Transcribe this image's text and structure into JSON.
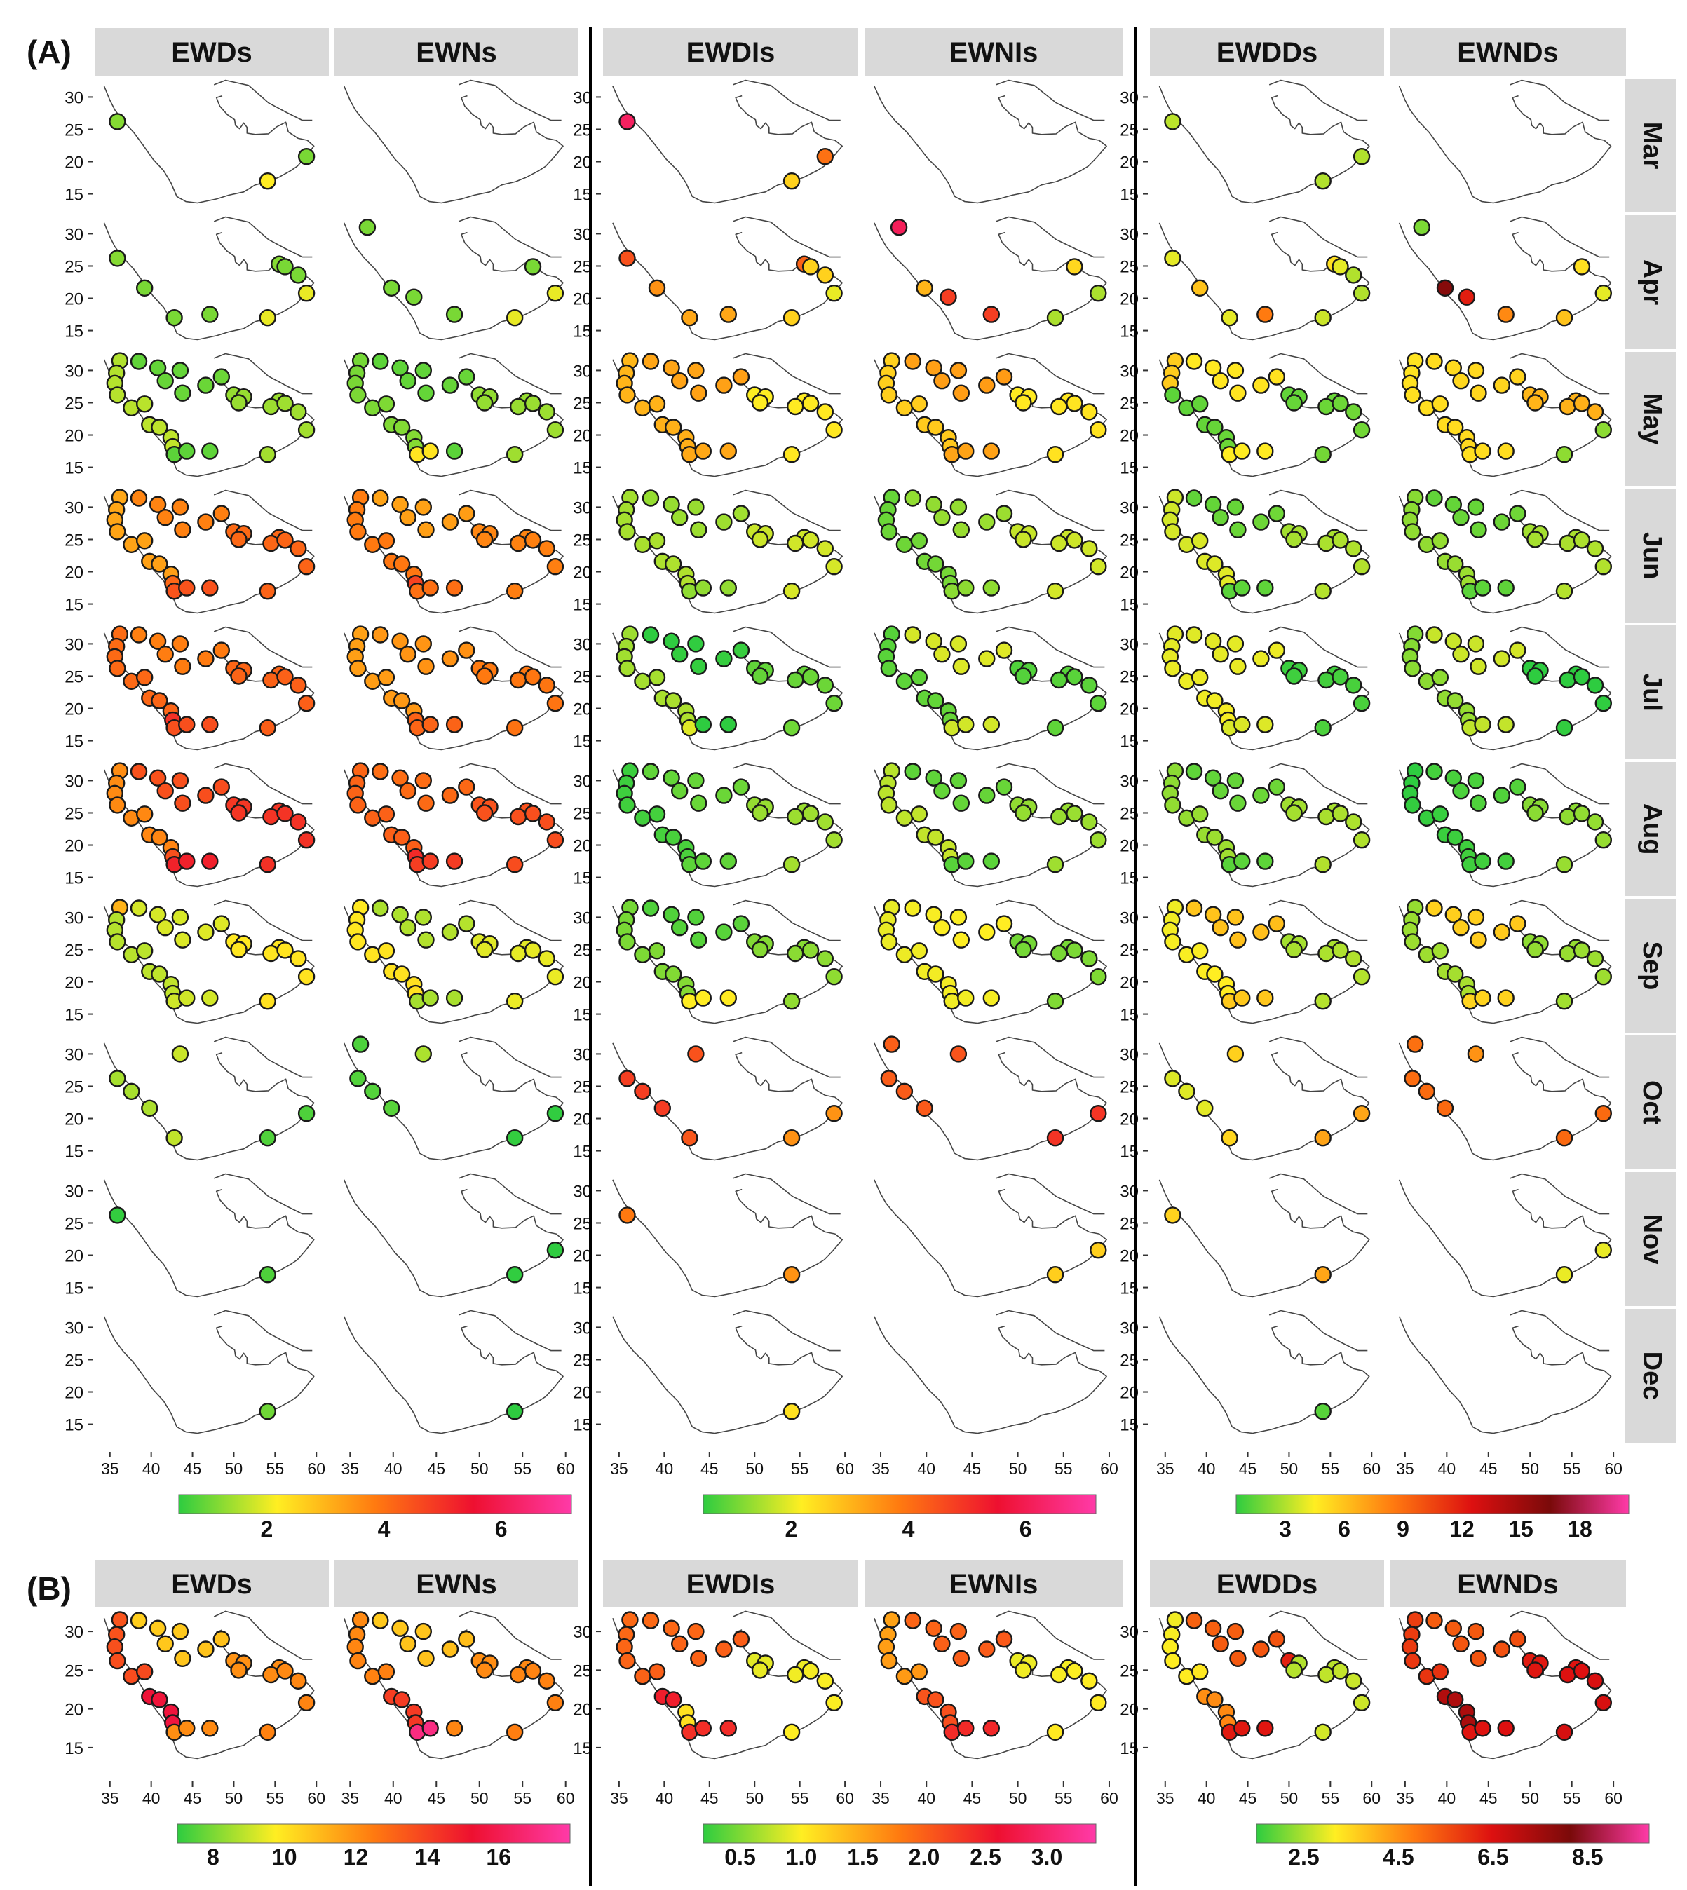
{
  "figure": {
    "panel_a_label": "(A)",
    "panel_b_label": "(B)"
  },
  "colors": {
    "strip_bg": "#d9d9d9",
    "divider": "#000000",
    "dot_stroke": "#1a1a1a"
  },
  "chart_data": [
    {
      "type": "scatter",
      "panel": "(A)",
      "facet_columns": [
        "EWDs",
        "EWNs",
        "EWDIs",
        "EWNIs",
        "EWDDs",
        "EWNDs"
      ],
      "facet_rows": [
        "Mar",
        "Apr",
        "May",
        "Jun",
        "Jul",
        "Aug",
        "Sep",
        "Oct",
        "Nov",
        "Dec"
      ],
      "xlim": [
        34,
        61
      ],
      "ylim": [
        13,
        32
      ],
      "x_ticks": [
        "35",
        "40",
        "45",
        "50",
        "55",
        "60"
      ],
      "y_ticks": [
        "30",
        "25",
        "20",
        "15"
      ],
      "xlabel": "",
      "ylabel": "",
      "grid": false,
      "colorbars": [
        {
          "columns": [
            "EWDs",
            "EWNs"
          ],
          "range": [
            0.5,
            7.2
          ],
          "ticks": [
            "2",
            "4",
            "6"
          ],
          "colors": [
            "#2ecc40",
            "#ffee22",
            "#ff7a10",
            "#ee1030",
            "#ff3aa8"
          ]
        },
        {
          "columns": [
            "EWDIs",
            "EWNIs"
          ],
          "range": [
            0.5,
            7.2
          ],
          "ticks": [
            "2",
            "4",
            "6"
          ],
          "colors": [
            "#2ecc40",
            "#ffee22",
            "#ff7a10",
            "#ee1030",
            "#ff3aa8"
          ]
        },
        {
          "columns": [
            "EWDDs",
            "EWNDs"
          ],
          "range": [
            0.5,
            20.5
          ],
          "ticks": [
            "3",
            "6",
            "9",
            "12",
            "15",
            "18"
          ],
          "colors": [
            "#2ecc40",
            "#ffee22",
            "#ff7a10",
            "#dd1010",
            "#7a0a0a",
            "#ff3aa8"
          ]
        }
      ],
      "station_coordinates": [
        {
          "id": "s0",
          "lon": 36.2,
          "lat": 31.5
        },
        {
          "id": "s1",
          "lon": 35.8,
          "lat": 29.6
        },
        {
          "id": "s2",
          "lon": 35.6,
          "lat": 28.0
        },
        {
          "id": "s3",
          "lon": 35.9,
          "lat": 26.2
        },
        {
          "id": "s4",
          "lon": 37.6,
          "lat": 24.2
        },
        {
          "id": "s5",
          "lon": 39.2,
          "lat": 24.8
        },
        {
          "id": "s6",
          "lon": 39.8,
          "lat": 21.6
        },
        {
          "id": "s7",
          "lon": 41.0,
          "lat": 21.2
        },
        {
          "id": "s8",
          "lon": 42.4,
          "lat": 19.6
        },
        {
          "id": "s9",
          "lon": 42.6,
          "lat": 18.2
        },
        {
          "id": "s10",
          "lon": 42.8,
          "lat": 17.0
        },
        {
          "id": "s11",
          "lon": 44.3,
          "lat": 17.5
        },
        {
          "id": "s12",
          "lon": 47.1,
          "lat": 17.5
        },
        {
          "id": "s13",
          "lon": 38.5,
          "lat": 31.4
        },
        {
          "id": "s14",
          "lon": 40.8,
          "lat": 30.4
        },
        {
          "id": "s15",
          "lon": 43.5,
          "lat": 30.0
        },
        {
          "id": "s16",
          "lon": 41.7,
          "lat": 28.4
        },
        {
          "id": "s17",
          "lon": 43.8,
          "lat": 26.5
        },
        {
          "id": "s18",
          "lon": 46.6,
          "lat": 27.7
        },
        {
          "id": "s19",
          "lon": 48.5,
          "lat": 29.0
        },
        {
          "id": "s20",
          "lon": 50.0,
          "lat": 26.2
        },
        {
          "id": "s21",
          "lon": 51.2,
          "lat": 25.9
        },
        {
          "id": "s22",
          "lon": 50.6,
          "lat": 25.0
        },
        {
          "id": "s23",
          "lon": 55.5,
          "lat": 25.3
        },
        {
          "id": "s24",
          "lon": 54.5,
          "lat": 24.4
        },
        {
          "id": "s25",
          "lon": 56.2,
          "lat": 24.9
        },
        {
          "id": "s26",
          "lon": 57.8,
          "lat": 23.6
        },
        {
          "id": "s27",
          "lon": 58.8,
          "lat": 20.8
        },
        {
          "id": "s28",
          "lon": 54.1,
          "lat": 17.0
        }
      ],
      "cells": {
        "Mar": {
          "EWDs": [
            {
              "lon": 35.9,
              "lat": 26.2,
              "value": 1.2
            },
            {
              "lon": 54.1,
              "lat": 17.0,
              "value": 2.2
            },
            {
              "lon": 58.8,
              "lat": 20.8,
              "value": 1.1
            }
          ],
          "EWDIs": [
            {
              "lon": 35.9,
              "lat": 26.2,
              "value": 6.2
            },
            {
              "lon": 54.1,
              "lat": 17.0,
              "value": 2.6
            },
            {
              "lon": 57.8,
              "lat": 20.8,
              "value": 4.0
            }
          ],
          "EWDDs": [
            {
              "lon": 35.9,
              "lat": 26.2,
              "value": 3.2
            },
            {
              "lon": 54.1,
              "lat": 17.0,
              "value": 3.0
            },
            {
              "lon": 58.8,
              "lat": 20.8,
              "value": 3.0
            }
          ]
        },
        "Apr": {
          "EWDs": [
            {
              "lon": 35.9,
              "lat": 26.2,
              "value": 1.2
            },
            {
              "lon": 39.2,
              "lat": 21.6,
              "value": 1.1
            },
            {
              "lon": 42.8,
              "lat": 17.0,
              "value": 1.1
            },
            {
              "lon": 47.1,
              "lat": 17.5,
              "value": 1.1
            },
            {
              "lon": 54.1,
              "lat": 17.0,
              "value": 2.0
            },
            {
              "lon": 55.5,
              "lat": 25.3,
              "value": 1.2
            },
            {
              "lon": 56.2,
              "lat": 24.9,
              "value": 1.1
            },
            {
              "lon": 57.8,
              "lat": 23.6,
              "value": 1.1
            },
            {
              "lon": 58.8,
              "lat": 20.8,
              "value": 2.0
            }
          ],
          "EWNs": [
            {
              "lon": 37.0,
              "lat": 31.0,
              "value": 1.1
            },
            {
              "lon": 39.8,
              "lat": 21.6,
              "value": 1.1
            },
            {
              "lon": 42.4,
              "lat": 20.2,
              "value": 1.1
            },
            {
              "lon": 47.1,
              "lat": 17.5,
              "value": 1.1
            },
            {
              "lon": 54.1,
              "lat": 17.0,
              "value": 2.0
            },
            {
              "lon": 56.2,
              "lat": 24.9,
              "value": 1.1
            },
            {
              "lon": 58.8,
              "lat": 20.8,
              "value": 2.0
            }
          ],
          "EWDIs": [
            {
              "lon": 35.9,
              "lat": 26.2,
              "value": 4.5
            },
            {
              "lon": 39.2,
              "lat": 21.6,
              "value": 3.5
            },
            {
              "lon": 42.8,
              "lat": 17.0,
              "value": 3.2
            },
            {
              "lon": 47.1,
              "lat": 17.5,
              "value": 3.2
            },
            {
              "lon": 54.1,
              "lat": 17.0,
              "value": 2.6
            },
            {
              "lon": 55.5,
              "lat": 25.3,
              "value": 4.2
            },
            {
              "lon": 56.2,
              "lat": 24.9,
              "value": 2.6
            },
            {
              "lon": 57.8,
              "lat": 23.6,
              "value": 2.6
            },
            {
              "lon": 58.8,
              "lat": 20.8,
              "value": 2.0
            }
          ],
          "EWNIs": [
            {
              "lon": 37.0,
              "lat": 31.0,
              "value": 6.1
            },
            {
              "lon": 39.8,
              "lat": 21.6,
              "value": 3.0
            },
            {
              "lon": 42.4,
              "lat": 20.2,
              "value": 4.8
            },
            {
              "lon": 47.1,
              "lat": 17.5,
              "value": 4.8
            },
            {
              "lon": 54.1,
              "lat": 17.0,
              "value": 1.5
            },
            {
              "lon": 56.2,
              "lat": 24.9,
              "value": 2.5
            },
            {
              "lon": 58.8,
              "lat": 20.8,
              "value": 1.5
            }
          ],
          "EWDDs": [
            {
              "lon": 35.9,
              "lat": 26.2,
              "value": 4.0
            },
            {
              "lon": 39.2,
              "lat": 21.6,
              "value": 6.0
            },
            {
              "lon": 42.8,
              "lat": 17.0,
              "value": 4.0
            },
            {
              "lon": 47.1,
              "lat": 17.5,
              "value": 8.5
            },
            {
              "lon": 54.1,
              "lat": 17.0,
              "value": 3.5
            },
            {
              "lon": 55.5,
              "lat": 25.3,
              "value": 5.0
            },
            {
              "lon": 56.2,
              "lat": 24.9,
              "value": 4.0
            },
            {
              "lon": 57.8,
              "lat": 23.6,
              "value": 3.0
            },
            {
              "lon": 58.8,
              "lat": 20.8,
              "value": 3.0
            }
          ],
          "EWNDs": [
            {
              "lon": 37.0,
              "lat": 31.0,
              "value": 2.0
            },
            {
              "lon": 39.8,
              "lat": 21.6,
              "value": 16.0
            },
            {
              "lon": 42.4,
              "lat": 20.2,
              "value": 12.0
            },
            {
              "lon": 47.1,
              "lat": 17.5,
              "value": 8.0
            },
            {
              "lon": 54.1,
              "lat": 17.0,
              "value": 6.0
            },
            {
              "lon": 56.2,
              "lat": 24.9,
              "value": 5.0
            },
            {
              "lon": 58.8,
              "lat": 20.8,
              "value": 4.0
            }
          ]
        }
      }
    },
    {
      "type": "scatter",
      "panel": "(B)",
      "facet_columns": [
        "EWDs",
        "EWNs",
        "EWDIs",
        "EWNIs",
        "EWDDs",
        "EWNDs"
      ],
      "xlim": [
        34,
        61
      ],
      "ylim": [
        13,
        32
      ],
      "x_ticks": [
        "35",
        "40",
        "45",
        "50",
        "55",
        "60"
      ],
      "y_ticks": [
        "30",
        "25",
        "20",
        "15"
      ],
      "grid": false,
      "colorbars": [
        {
          "columns": [
            "EWDs",
            "EWNs"
          ],
          "range": [
            7.0,
            18.0
          ],
          "ticks": [
            "8",
            "10",
            "12",
            "14",
            "16"
          ],
          "colors": [
            "#2ecc40",
            "#ffee22",
            "#ff7a10",
            "#ee1030",
            "#ff3aa8"
          ]
        },
        {
          "columns": [
            "EWDIs",
            "EWNIs"
          ],
          "range": [
            0.2,
            3.4
          ],
          "ticks": [
            "0.5",
            "1.0",
            "1.5",
            "2.0",
            "2.5",
            "3.0"
          ],
          "colors": [
            "#2ecc40",
            "#ffee22",
            "#ff7a10",
            "#ee1030",
            "#ff3aa8"
          ]
        },
        {
          "columns": [
            "EWDDs",
            "EWNDs"
          ],
          "range": [
            1.5,
            9.8
          ],
          "ticks": [
            "2.5",
            "4.5",
            "6.5",
            "8.5"
          ],
          "colors": [
            "#2ecc40",
            "#ffee22",
            "#ff7a10",
            "#dd1010",
            "#7a0a0a",
            "#ff3aa8"
          ]
        }
      ]
    }
  ]
}
